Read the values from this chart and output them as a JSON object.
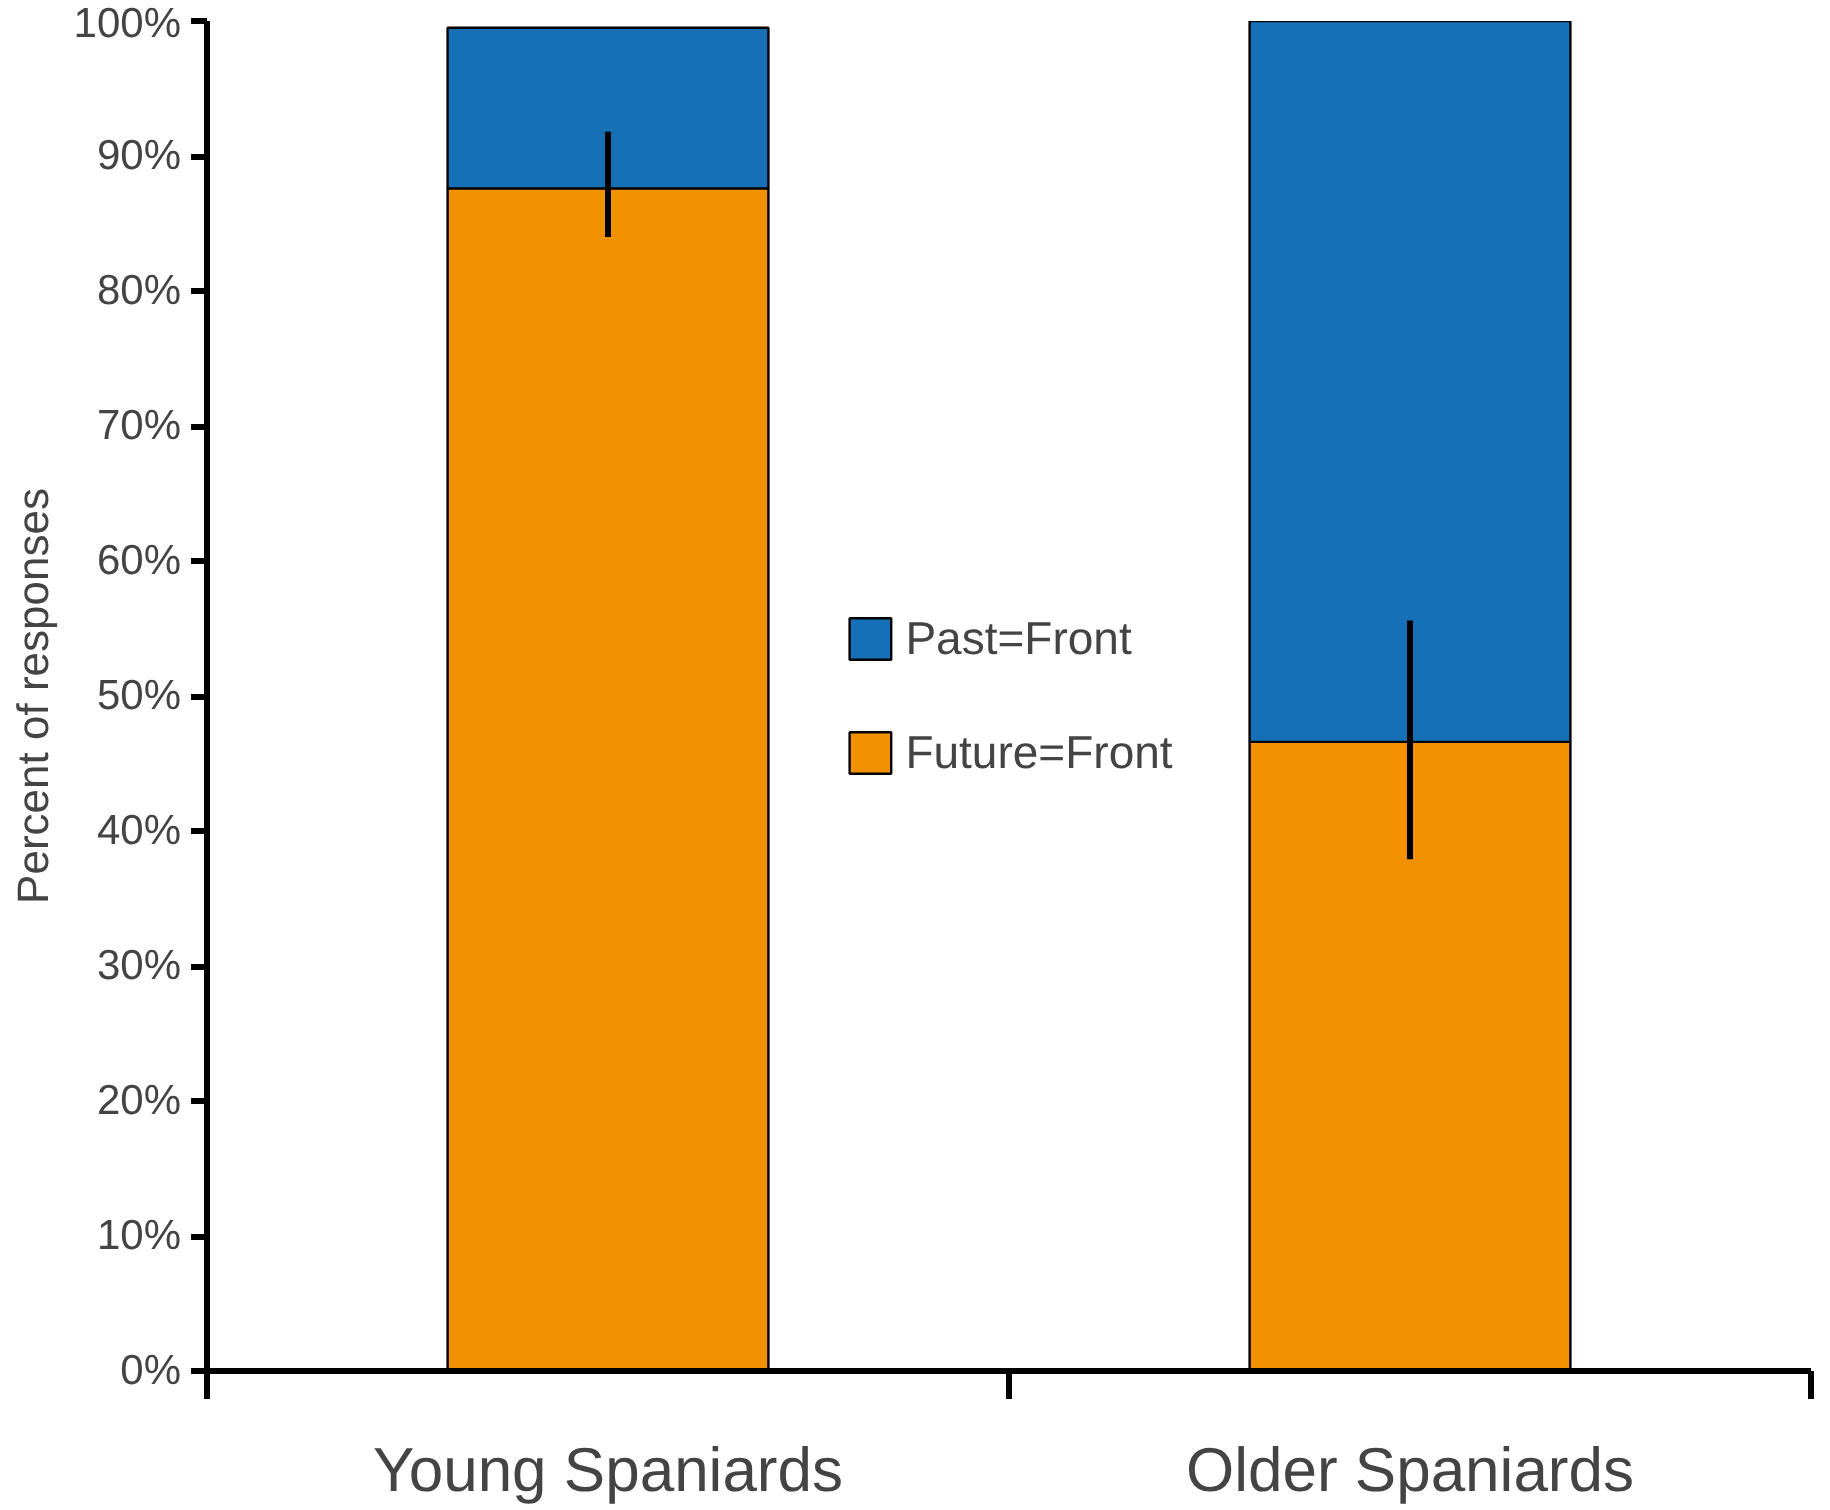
{
  "chart_data": {
    "type": "bar",
    "stacked": true,
    "ylabel": "Percent of responses",
    "categories": [
      "Young Spaniards",
      "Older Spaniards"
    ],
    "series": [
      {
        "name": "Future=Front",
        "color": "#f39200",
        "values": [
          87.6,
          46.6
        ],
        "errors": [
          [
            84.0,
            91.8
          ],
          [
            37.9,
            55.6
          ]
        ]
      },
      {
        "name": "Past=Front",
        "color": "#1570b8",
        "values": [
          11.9,
          53.4
        ]
      }
    ],
    "ylim": [
      0,
      100
    ],
    "yticks": [
      {
        "value": 0,
        "label": "0%"
      },
      {
        "value": 10,
        "label": "10%"
      },
      {
        "value": 20,
        "label": "20%"
      },
      {
        "value": 30,
        "label": "30%"
      },
      {
        "value": 40,
        "label": "40%"
      },
      {
        "value": 50,
        "label": "50%"
      },
      {
        "value": 60,
        "label": "60%"
      },
      {
        "value": 70,
        "label": "70%"
      },
      {
        "value": 80,
        "label": "80%"
      },
      {
        "value": 90,
        "label": "90%"
      },
      {
        "value": 100,
        "label": "100%"
      }
    ],
    "grid": false,
    "legend": "center"
  }
}
